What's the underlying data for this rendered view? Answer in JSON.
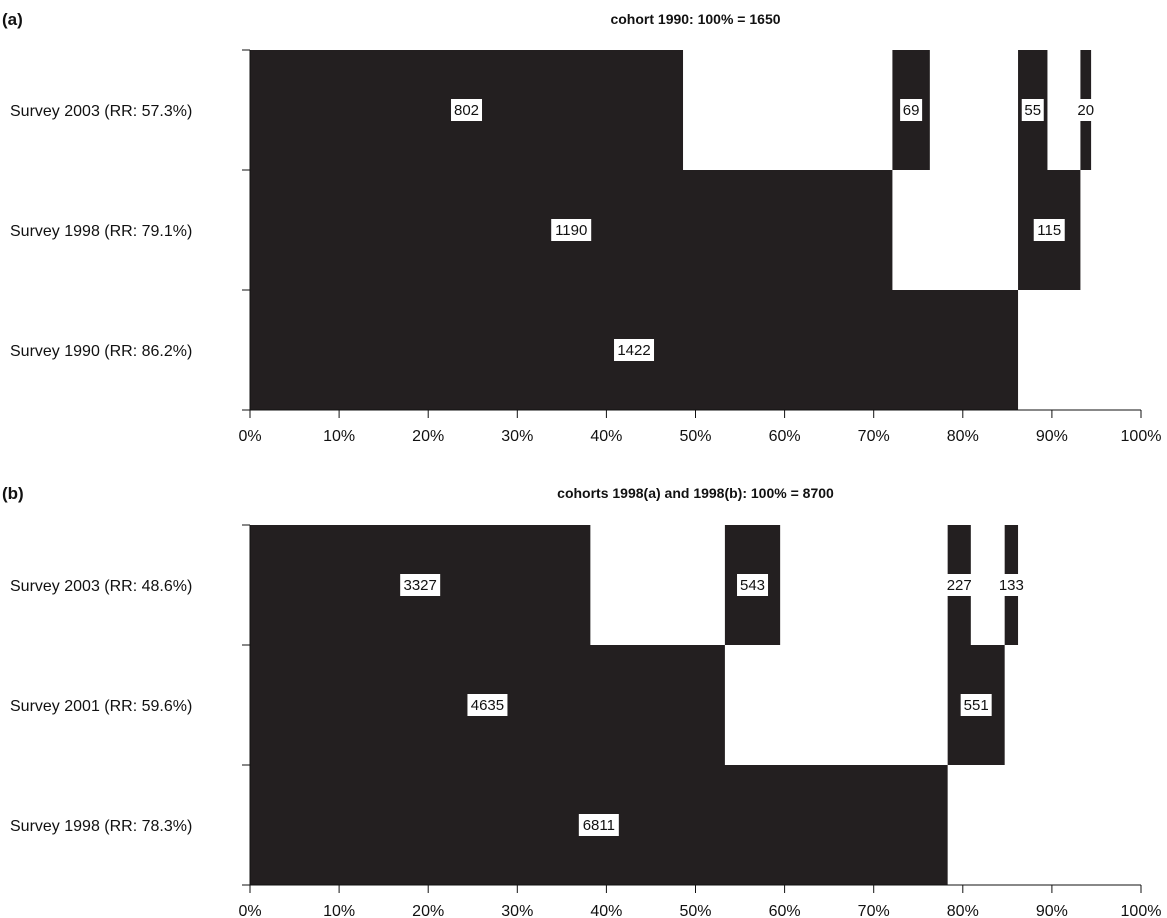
{
  "chart_data": [
    {
      "type": "bar",
      "panel": "(a)",
      "title": "cohort 1990: 100% = 1650",
      "xlim": [
        0,
        100
      ],
      "x_ticks": [
        "0%",
        "10%",
        "20%",
        "30%",
        "40%",
        "50%",
        "60%",
        "70%",
        "80%",
        "90%",
        "100%"
      ],
      "rows": [
        {
          "label": "Survey 2003 (RR: 57.3%)",
          "segments": [
            {
              "start": 0,
              "end": 48.6,
              "value": "802"
            },
            {
              "start": 72.1,
              "end": 76.3,
              "value": "69"
            },
            {
              "start": 86.2,
              "end": 89.5,
              "value": "55"
            },
            {
              "start": 93.2,
              "end": 94.4,
              "value": "20"
            }
          ]
        },
        {
          "label": "Survey 1998 (RR: 79.1%)",
          "segments": [
            {
              "start": 0,
              "end": 72.1,
              "value": "1190"
            },
            {
              "start": 86.2,
              "end": 93.2,
              "value": "115"
            }
          ]
        },
        {
          "label": "Survey 1990 (RR: 86.2%)",
          "segments": [
            {
              "start": 0,
              "end": 86.2,
              "value": "1422"
            }
          ]
        }
      ]
    },
    {
      "type": "bar",
      "panel": "(b)",
      "title": "cohorts 1998(a) and 1998(b): 100% = 8700",
      "xlim": [
        0,
        100
      ],
      "x_ticks": [
        "0%",
        "10%",
        "20%",
        "30%",
        "40%",
        "50%",
        "60%",
        "70%",
        "80%",
        "90%",
        "100%"
      ],
      "rows": [
        {
          "label": "Survey 2003 (RR: 48.6%)",
          "segments": [
            {
              "start": 0,
              "end": 38.2,
              "value": "3327"
            },
            {
              "start": 53.3,
              "end": 59.5,
              "value": "543"
            },
            {
              "start": 78.3,
              "end": 80.9,
              "value": "227"
            },
            {
              "start": 84.7,
              "end": 86.2,
              "value": "133"
            }
          ]
        },
        {
          "label": "Survey 2001 (RR: 59.6%)",
          "segments": [
            {
              "start": 0,
              "end": 53.3,
              "value": "4635"
            },
            {
              "start": 78.3,
              "end": 84.7,
              "value": "551"
            }
          ]
        },
        {
          "label": "Survey 1998 (RR: 78.3%)",
          "segments": [
            {
              "start": 0,
              "end": 78.3,
              "value": "6811"
            }
          ]
        }
      ]
    }
  ]
}
